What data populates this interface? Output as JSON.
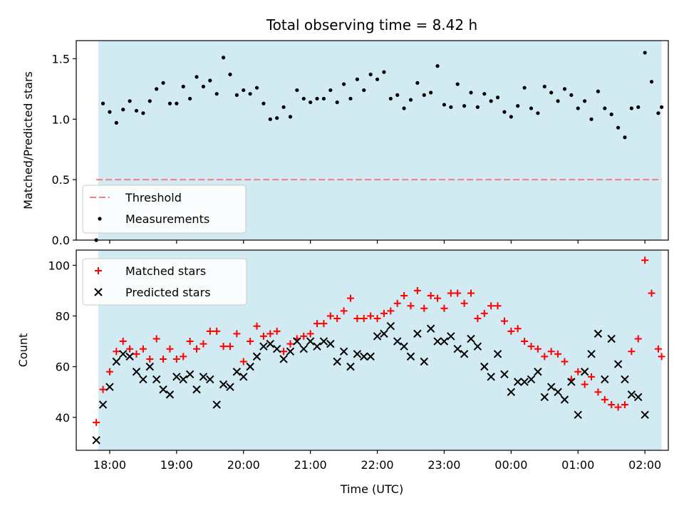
{
  "chart_data": [
    {
      "type": "scatter",
      "title": "Total observing time = 8.42 h",
      "ylabel": "Matched/Predicted stars",
      "ylim": [
        0,
        1.65
      ],
      "xlim_hours": [
        17.5,
        26.35
      ],
      "yticks": [
        0.0,
        0.5,
        1.0,
        1.5
      ],
      "ytick_labels": [
        "0.0",
        "0.5",
        "1.0",
        "1.5"
      ],
      "shaded_span_hours": [
        17.83,
        26.25
      ],
      "shade_color": "#add8e6",
      "threshold": {
        "name": "Threshold",
        "y": 0.5,
        "x_start": 17.8,
        "x_end": 26.25,
        "color": "#f08080"
      },
      "series": [
        {
          "name": "Measurements",
          "color": "#000000",
          "x": [
            17.8,
            17.9,
            18.0,
            18.1,
            18.2,
            18.3,
            18.4,
            18.5,
            18.6,
            18.7,
            18.8,
            18.9,
            19.0,
            19.1,
            19.2,
            19.3,
            19.4,
            19.5,
            19.6,
            19.7,
            19.8,
            19.9,
            20.0,
            20.1,
            20.2,
            20.3,
            20.4,
            20.5,
            20.6,
            20.7,
            20.8,
            20.9,
            21.0,
            21.1,
            21.2,
            21.3,
            21.4,
            21.5,
            21.6,
            21.7,
            21.8,
            21.9,
            22.0,
            22.1,
            22.2,
            22.3,
            22.4,
            22.5,
            22.6,
            22.7,
            22.8,
            22.9,
            23.0,
            23.1,
            23.2,
            23.3,
            23.4,
            23.5,
            23.6,
            23.7,
            23.8,
            23.9,
            24.0,
            24.1,
            24.2,
            24.3,
            24.4,
            24.5,
            24.6,
            24.7,
            24.8,
            24.9,
            25.0,
            25.1,
            25.2,
            25.3,
            25.4,
            25.5,
            25.6,
            25.7,
            25.8,
            25.9,
            26.0,
            26.1,
            26.2,
            26.25
          ],
          "y": [
            0.0,
            1.13,
            1.06,
            0.97,
            1.08,
            1.15,
            1.07,
            1.05,
            1.15,
            1.25,
            1.3,
            1.13,
            1.13,
            1.27,
            1.17,
            1.35,
            1.27,
            1.32,
            1.21,
            1.51,
            1.37,
            1.2,
            1.24,
            1.21,
            1.26,
            1.13,
            1.0,
            1.01,
            1.1,
            1.02,
            1.24,
            1.17,
            1.14,
            1.17,
            1.17,
            1.24,
            1.14,
            1.29,
            1.17,
            1.33,
            1.24,
            1.37,
            1.33,
            1.39,
            1.17,
            1.2,
            1.09,
            1.16,
            1.3,
            1.2,
            1.22,
            1.44,
            1.12,
            1.1,
            1.29,
            1.11,
            1.22,
            1.1,
            1.21,
            1.15,
            1.18,
            1.06,
            1.02,
            1.11,
            1.26,
            1.09,
            1.05,
            1.27,
            1.22,
            1.15,
            1.25,
            1.2,
            1.09,
            1.15,
            1.0,
            1.23,
            1.09,
            1.04,
            0.93,
            0.85,
            1.09,
            1.1,
            1.55,
            1.31,
            1.05,
            1.1
          ]
        }
      ],
      "legend": {
        "location": "lower left",
        "entries": [
          "Threshold",
          "Measurements"
        ]
      }
    },
    {
      "type": "scatter",
      "xlabel": "Time (UTC)",
      "ylabel": "Count",
      "ylim": [
        27,
        106
      ],
      "xlim_hours": [
        17.5,
        26.35
      ],
      "yticks": [
        40,
        60,
        80,
        100
      ],
      "ytick_labels": [
        "40",
        "60",
        "80",
        "100"
      ],
      "xticks_hours": [
        18,
        19,
        20,
        21,
        22,
        23,
        24,
        25,
        26
      ],
      "xtick_labels": [
        "18:00",
        "19:00",
        "20:00",
        "21:00",
        "22:00",
        "23:00",
        "00:00",
        "01:00",
        "02:00"
      ],
      "shaded_span_hours": [
        17.83,
        26.25
      ],
      "shade_color": "#add8e6",
      "series": [
        {
          "name": "Matched stars",
          "marker": "+",
          "color": "#ff0000",
          "x": [
            17.8,
            17.9,
            18.0,
            18.1,
            18.2,
            18.3,
            18.4,
            18.5,
            18.6,
            18.7,
            18.8,
            18.9,
            19.0,
            19.1,
            19.2,
            19.3,
            19.4,
            19.5,
            19.6,
            19.7,
            19.8,
            19.9,
            20.0,
            20.1,
            20.2,
            20.3,
            20.4,
            20.5,
            20.6,
            20.7,
            20.8,
            20.9,
            21.0,
            21.1,
            21.2,
            21.3,
            21.4,
            21.5,
            21.6,
            21.7,
            21.8,
            21.9,
            22.0,
            22.1,
            22.2,
            22.3,
            22.4,
            22.5,
            22.6,
            22.7,
            22.8,
            22.9,
            23.0,
            23.1,
            23.2,
            23.3,
            23.4,
            23.5,
            23.6,
            23.7,
            23.8,
            23.9,
            24.0,
            24.1,
            24.2,
            24.3,
            24.4,
            24.5,
            24.6,
            24.7,
            24.8,
            24.9,
            25.0,
            25.1,
            25.2,
            25.3,
            25.4,
            25.5,
            25.6,
            25.7,
            25.8,
            25.9,
            26.0,
            26.1,
            26.2,
            26.25
          ],
          "y": [
            38,
            51,
            58,
            66,
            70,
            67,
            65,
            67,
            63,
            71,
            63,
            67,
            63,
            64,
            70,
            67,
            69,
            74,
            74,
            68,
            68,
            73,
            62,
            70,
            76,
            72,
            73,
            74,
            66,
            69,
            71,
            72,
            73,
            77,
            77,
            80,
            79,
            82,
            87,
            79,
            79,
            80,
            79,
            81,
            82,
            85,
            88,
            84,
            90,
            83,
            88,
            87,
            83,
            89,
            89,
            85,
            89,
            79,
            81,
            84,
            84,
            78,
            74,
            75,
            70,
            68,
            67,
            64,
            66,
            65,
            62,
            55,
            58,
            53,
            56,
            50,
            47,
            45,
            44,
            45,
            66,
            71,
            102,
            89,
            67,
            64
          ]
        },
        {
          "name": "Predicted stars",
          "marker": "x",
          "color": "#000000",
          "x": [
            17.8,
            17.9,
            18.0,
            18.1,
            18.2,
            18.3,
            18.4,
            18.5,
            18.6,
            18.7,
            18.8,
            18.9,
            19.0,
            19.1,
            19.2,
            19.3,
            19.4,
            19.5,
            19.6,
            19.7,
            19.8,
            19.9,
            20.0,
            20.1,
            20.2,
            20.3,
            20.4,
            20.5,
            20.6,
            20.7,
            20.8,
            20.9,
            21.0,
            21.1,
            21.2,
            21.3,
            21.4,
            21.5,
            21.6,
            21.7,
            21.8,
            21.9,
            22.0,
            22.1,
            22.2,
            22.3,
            22.4,
            22.5,
            22.6,
            22.7,
            22.8,
            22.9,
            23.0,
            23.1,
            23.2,
            23.3,
            23.4,
            23.5,
            23.6,
            23.7,
            23.8,
            23.9,
            24.0,
            24.1,
            24.2,
            24.3,
            24.4,
            24.5,
            24.6,
            24.7,
            24.8,
            24.9,
            25.0,
            25.1,
            25.2,
            25.3,
            25.4,
            25.5,
            25.6,
            25.7,
            25.8,
            25.9,
            26.0
          ],
          "y": [
            31,
            45,
            52,
            62,
            65,
            64,
            58,
            55,
            60,
            55,
            51,
            49,
            56,
            55,
            57,
            51,
            56,
            55,
            45,
            53,
            52,
            58,
            56,
            60,
            64,
            68,
            69,
            67,
            63,
            66,
            70,
            67,
            70,
            68,
            70,
            69,
            62,
            66,
            60,
            65,
            64,
            64,
            72,
            73,
            76,
            70,
            68,
            64,
            73,
            62,
            75,
            70,
            70,
            72,
            67,
            65,
            71,
            68,
            60,
            56,
            65,
            57,
            50,
            54,
            54,
            55,
            58,
            48,
            52,
            50,
            47,
            54,
            41,
            58,
            65,
            73,
            55,
            71,
            61,
            55,
            49,
            48,
            41
          ]
        }
      ],
      "legend": {
        "location": "upper left",
        "entries": [
          "Matched stars",
          "Predicted stars"
        ]
      }
    }
  ]
}
